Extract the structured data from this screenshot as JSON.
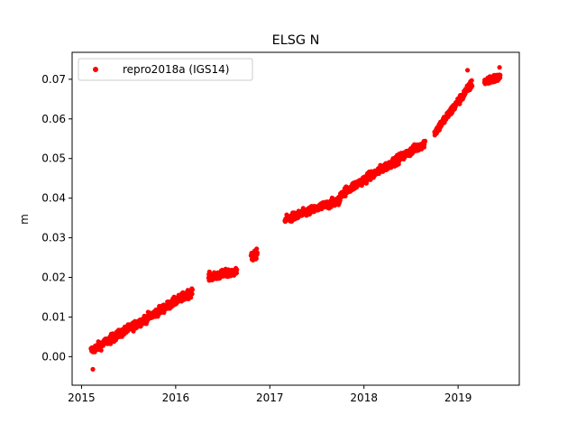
{
  "chart_data": {
    "type": "scatter",
    "title": "ELSG N",
    "xlabel": "",
    "ylabel": "m",
    "xlim": [
      2014.9,
      2019.65
    ],
    "ylim": [
      -0.0072,
      0.0768
    ],
    "x_ticks": [
      2015,
      2016,
      2017,
      2018,
      2019
    ],
    "y_ticks": [
      0.0,
      0.01,
      0.02,
      0.03,
      0.04,
      0.05,
      0.06,
      0.07
    ],
    "x_tick_labels": [
      "2015",
      "2016",
      "2017",
      "2018",
      "2019"
    ],
    "y_tick_labels": [
      "0.00",
      "0.01",
      "0.02",
      "0.03",
      "0.04",
      "0.05",
      "0.06",
      "0.07"
    ],
    "grid": false,
    "legend_position": "top-left",
    "series": [
      {
        "name": "repro2018a (IGS14)",
        "color": "#ff0000",
        "marker": "circle",
        "segments": [
          {
            "x0": 2015.1,
            "x1": 2016.18,
            "y0": 0.0015,
            "y1": 0.0165
          },
          {
            "x0": 2016.35,
            "x1": 2016.65,
            "y0": 0.02,
            "y1": 0.0215
          },
          {
            "x0": 2016.8,
            "x1": 2016.87,
            "y0": 0.025,
            "y1": 0.026
          },
          {
            "x0": 2017.16,
            "x1": 2017.75,
            "y0": 0.0345,
            "y1": 0.0395
          },
          {
            "x0": 2017.75,
            "x1": 2018.65,
            "y0": 0.041,
            "y1": 0.054
          },
          {
            "x0": 2018.75,
            "x1": 2019.15,
            "y0": 0.0565,
            "y1": 0.069
          },
          {
            "x0": 2019.28,
            "x1": 2019.45,
            "y0": 0.0695,
            "y1": 0.0705
          }
        ],
        "points": [
          {
            "x": 2015.12,
            "y": -0.0032
          },
          {
            "x": 2016.86,
            "y": 0.0272
          },
          {
            "x": 2019.1,
            "y": 0.0723
          },
          {
            "x": 2019.44,
            "y": 0.073
          }
        ]
      }
    ]
  }
}
